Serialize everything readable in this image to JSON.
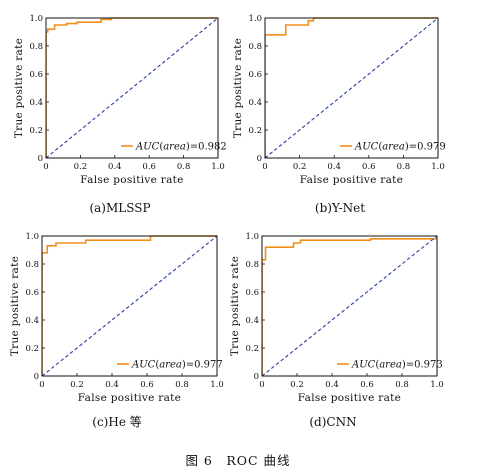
{
  "figure_caption": "图 6　ROC 曲线",
  "chart_data": [
    {
      "type": "line",
      "caption": "(a)MLSSP",
      "xlabel": "False positive rate",
      "ylabel": "True positive rate",
      "xlim": [
        0,
        1.0
      ],
      "ylim": [
        0,
        1.0
      ],
      "ticks": [
        "0",
        "0.2",
        "0.4",
        "0.6",
        "0.8",
        "1.0"
      ],
      "grid": false,
      "legend_position": "bottom-right",
      "legend_text": "AUC(area)=0.982",
      "series": [
        {
          "name": "AUC(area)=0.982",
          "color": "#f28e1c",
          "x": [
            0,
            0,
            0.01,
            0.01,
            0.05,
            0.05,
            0.12,
            0.12,
            0.18,
            0.18,
            0.32,
            0.32,
            0.38,
            0.38,
            1.0
          ],
          "y": [
            0,
            0.9,
            0.9,
            0.92,
            0.92,
            0.95,
            0.95,
            0.96,
            0.96,
            0.97,
            0.97,
            0.99,
            0.99,
            1.0,
            1.0
          ]
        },
        {
          "name": "",
          "color": "#2a3da0",
          "style": "dashed",
          "x": [
            0,
            1
          ],
          "y": [
            0,
            1
          ]
        }
      ]
    },
    {
      "type": "line",
      "caption": "(b)Y-Net",
      "xlabel": "False positive rate",
      "ylabel": "True positive rate",
      "xlim": [
        0,
        1.0
      ],
      "ylim": [
        0,
        1.0
      ],
      "ticks": [
        "0",
        "0.2",
        "0.4",
        "0.6",
        "0.8",
        "1.0"
      ],
      "grid": false,
      "legend_position": "bottom-right",
      "legend_text": "AUC(area)=0.979",
      "series": [
        {
          "name": "AUC(area)=0.979",
          "color": "#f28e1c",
          "x": [
            0,
            0,
            0.12,
            0.12,
            0.25,
            0.25,
            0.28,
            0.28,
            1.0
          ],
          "y": [
            0,
            0.88,
            0.88,
            0.95,
            0.95,
            0.98,
            0.98,
            1.0,
            1.0
          ]
        },
        {
          "name": "",
          "color": "#2a3da0",
          "style": "dashed",
          "x": [
            0,
            1
          ],
          "y": [
            0,
            1
          ]
        }
      ]
    },
    {
      "type": "line",
      "caption": "(c)He 等",
      "xlabel": "False positive rate",
      "ylabel": "True positive rate",
      "xlim": [
        0,
        1.0
      ],
      "ylim": [
        0,
        1.0
      ],
      "ticks": [
        "0",
        "0.2",
        "0.4",
        "0.6",
        "0.8",
        "1.0"
      ],
      "grid": false,
      "legend_position": "bottom-right",
      "legend_text": "AUC(area)=0.977",
      "series": [
        {
          "name": "AUC(area)=0.977",
          "color": "#f28e1c",
          "x": [
            0,
            0,
            0.03,
            0.03,
            0.08,
            0.08,
            0.25,
            0.25,
            0.62,
            0.62,
            1.0
          ],
          "y": [
            0,
            0.88,
            0.88,
            0.93,
            0.93,
            0.95,
            0.95,
            0.97,
            0.97,
            1.0,
            1.0
          ]
        },
        {
          "name": "",
          "color": "#2a3da0",
          "style": "dashed",
          "x": [
            0,
            1
          ],
          "y": [
            0,
            1
          ]
        }
      ]
    },
    {
      "type": "line",
      "caption": "(d)CNN",
      "xlabel": "False positive rate",
      "ylabel": "True positive rate",
      "xlim": [
        0,
        1.0
      ],
      "ylim": [
        0,
        1.0
      ],
      "ticks": [
        "0",
        "0.2",
        "0.4",
        "0.6",
        "0.8",
        "1.0"
      ],
      "grid": false,
      "legend_position": "bottom-right",
      "legend_text": "AUC(area)=0.973",
      "series": [
        {
          "name": "AUC(area)=0.973",
          "color": "#f28e1c",
          "x": [
            0,
            0,
            0.02,
            0.02,
            0.18,
            0.18,
            0.22,
            0.22,
            0.62,
            0.62,
            1.0
          ],
          "y": [
            0,
            0.83,
            0.83,
            0.92,
            0.92,
            0.95,
            0.95,
            0.97,
            0.97,
            0.98,
            0.98
          ]
        },
        {
          "name": "",
          "color": "#2a3da0",
          "style": "dashed",
          "x": [
            0,
            1
          ],
          "y": [
            0,
            1
          ]
        }
      ]
    }
  ]
}
